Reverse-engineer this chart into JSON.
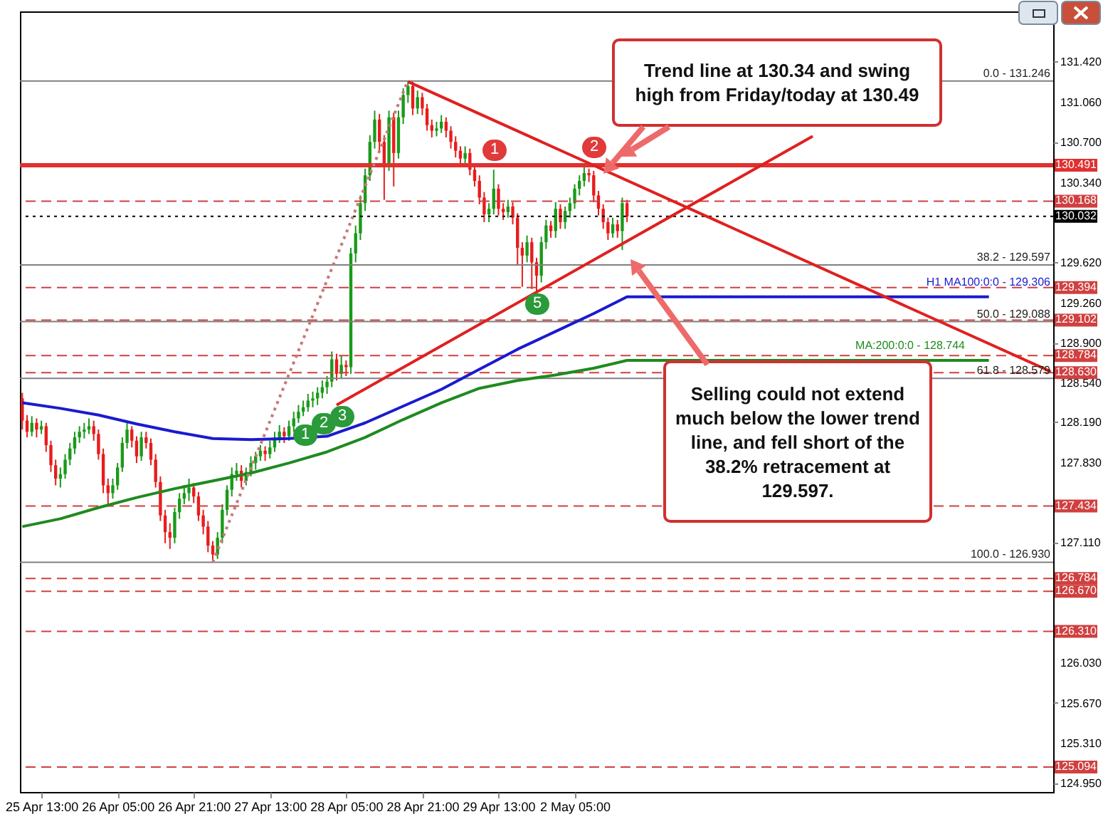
{
  "chart_data": {
    "type": "candlestick",
    "categories": [
      null,
      null,
      null,
      null,
      "25 Apr 13:00",
      null,
      null,
      null,
      null,
      null,
      null,
      null,
      null,
      null,
      null,
      null,
      null,
      null,
      null,
      null,
      "26 Apr 05:00",
      null,
      null,
      null,
      null,
      null,
      null,
      null,
      null,
      null,
      null,
      null,
      null,
      null,
      null,
      null,
      "26 Apr 21:00",
      null,
      null,
      null,
      null,
      null,
      null,
      null,
      null,
      null,
      null,
      null,
      null,
      null,
      null,
      null,
      "27 Apr 13:00",
      null,
      null,
      null,
      null,
      null,
      null,
      null,
      null,
      null,
      null,
      null,
      null,
      null,
      null,
      null,
      "28 Apr 05:00",
      null,
      null,
      null,
      null,
      null,
      null,
      null,
      null,
      null,
      null,
      null,
      null,
      null,
      null,
      null,
      "28 Apr 21:00",
      null,
      null,
      null,
      null,
      null,
      null,
      null,
      null,
      null,
      null,
      null,
      null,
      null,
      null,
      null,
      "29 Apr 13:00",
      null,
      null,
      null,
      null,
      null,
      null,
      null,
      null,
      null,
      null,
      null,
      null,
      null,
      null,
      null,
      "2 May 05:00",
      null,
      null,
      null,
      null,
      null,
      null,
      null,
      null,
      null,
      null,
      null,
      null,
      null,
      null,
      null,
      null,
      null,
      null,
      null,
      null,
      null,
      null,
      null,
      null,
      null,
      null,
      null,
      null,
      null,
      null,
      null,
      null,
      null,
      null,
      null,
      null,
      null,
      null,
      null,
      null,
      null,
      null,
      null,
      null,
      null,
      null,
      null,
      null,
      null,
      null,
      null,
      null,
      null,
      null,
      null,
      null,
      null,
      null,
      null,
      null,
      null,
      null,
      null,
      null,
      null,
      null,
      null,
      null,
      null,
      null,
      null,
      null,
      null,
      null,
      null,
      null,
      null,
      null,
      null,
      null,
      null,
      null,
      null,
      null,
      null,
      null,
      null,
      null,
      null,
      null,
      null,
      null,
      null,
      null,
      null,
      null,
      null,
      null,
      null,
      null
    ],
    "ohlc": [
      [
        128.4,
        128.45,
        128.12,
        128.2
      ],
      [
        128.2,
        128.25,
        128.05,
        128.1
      ],
      [
        128.1,
        128.24,
        128.06,
        128.18
      ],
      [
        128.18,
        128.22,
        128.05,
        128.12
      ],
      [
        128.12,
        128.2,
        128.08,
        128.15
      ],
      [
        128.15,
        128.18,
        127.92,
        127.98
      ],
      [
        127.98,
        128.02,
        127.74,
        127.8
      ],
      [
        127.8,
        127.85,
        127.62,
        127.68
      ],
      [
        127.68,
        127.78,
        127.6,
        127.72
      ],
      [
        127.72,
        127.9,
        127.68,
        127.85
      ],
      [
        127.85,
        128.0,
        127.8,
        127.95
      ],
      [
        127.95,
        128.1,
        127.9,
        128.05
      ],
      [
        128.05,
        128.15,
        128.0,
        128.1
      ],
      [
        128.1,
        128.18,
        128.04,
        128.12
      ],
      [
        128.12,
        128.22,
        128.08,
        128.15
      ],
      [
        128.15,
        128.2,
        128.02,
        128.08
      ],
      [
        128.08,
        128.12,
        127.85,
        127.9
      ],
      [
        127.9,
        127.95,
        127.55,
        127.62
      ],
      [
        127.62,
        127.68,
        127.45,
        127.55
      ],
      [
        127.55,
        127.68,
        127.5,
        127.62
      ],
      [
        127.62,
        127.82,
        127.58,
        127.78
      ],
      [
        127.78,
        128.05,
        127.74,
        128.0
      ],
      [
        128.0,
        128.18,
        127.95,
        128.12
      ],
      [
        128.12,
        128.15,
        127.96,
        128.02
      ],
      [
        128.02,
        128.06,
        127.82,
        127.88
      ],
      [
        127.88,
        128.1,
        127.84,
        128.05
      ],
      [
        128.05,
        128.1,
        127.95,
        128.0
      ],
      [
        128.0,
        128.04,
        127.8,
        127.85
      ],
      [
        127.85,
        127.9,
        127.6,
        127.65
      ],
      [
        127.65,
        127.7,
        127.3,
        127.35
      ],
      [
        127.35,
        127.4,
        127.1,
        127.2
      ],
      [
        127.2,
        127.28,
        127.05,
        127.15
      ],
      [
        127.15,
        127.42,
        127.1,
        127.38
      ],
      [
        127.38,
        127.55,
        127.32,
        127.5
      ],
      [
        127.5,
        127.62,
        127.45,
        127.55
      ],
      [
        127.55,
        127.68,
        127.48,
        127.6
      ],
      [
        127.6,
        127.64,
        127.46,
        127.52
      ],
      [
        127.52,
        127.56,
        127.3,
        127.35
      ],
      [
        127.35,
        127.4,
        127.18,
        127.25
      ],
      [
        127.25,
        127.3,
        127.02,
        127.08
      ],
      [
        127.08,
        127.12,
        126.93,
        127.0
      ],
      [
        127.0,
        127.2,
        126.96,
        127.15
      ],
      [
        127.15,
        127.45,
        127.1,
        127.4
      ],
      [
        127.4,
        127.62,
        127.35,
        127.58
      ],
      [
        127.58,
        127.78,
        127.52,
        127.72
      ],
      [
        127.72,
        127.82,
        127.66,
        127.75
      ],
      [
        127.75,
        127.8,
        127.6,
        127.66
      ],
      [
        127.66,
        127.78,
        127.62,
        127.74
      ],
      [
        127.74,
        127.88,
        127.7,
        127.82
      ],
      [
        127.82,
        127.92,
        127.76,
        127.88
      ],
      [
        127.88,
        127.98,
        127.84,
        127.93
      ],
      [
        127.93,
        127.97,
        127.84,
        127.9
      ],
      [
        127.9,
        128.02,
        127.86,
        127.96
      ],
      [
        127.96,
        128.1,
        127.92,
        128.05
      ],
      [
        128.05,
        128.16,
        128.0,
        128.1
      ],
      [
        128.1,
        128.14,
        128.0,
        128.06
      ],
      [
        128.06,
        128.2,
        128.02,
        128.15
      ],
      [
        128.15,
        128.28,
        128.1,
        128.22
      ],
      [
        128.22,
        128.34,
        128.18,
        128.28
      ],
      [
        128.28,
        128.38,
        128.24,
        128.32
      ],
      [
        128.32,
        128.44,
        128.28,
        128.38
      ],
      [
        128.38,
        128.46,
        128.32,
        128.4
      ],
      [
        128.4,
        128.5,
        128.34,
        128.45
      ],
      [
        128.45,
        128.56,
        128.4,
        128.5
      ],
      [
        128.5,
        128.6,
        128.44,
        128.55
      ],
      [
        128.55,
        128.82,
        128.5,
        128.75
      ],
      [
        128.75,
        128.8,
        128.56,
        128.62
      ],
      [
        128.62,
        128.78,
        128.58,
        128.7
      ],
      [
        128.7,
        128.74,
        128.6,
        128.68
      ],
      [
        128.68,
        129.75,
        128.62,
        129.7
      ],
      [
        129.7,
        129.95,
        129.62,
        129.88
      ],
      [
        129.88,
        130.22,
        129.82,
        130.15
      ],
      [
        130.15,
        130.46,
        130.08,
        130.4
      ],
      [
        130.4,
        130.76,
        130.35,
        130.7
      ],
      [
        130.7,
        130.98,
        130.64,
        130.9
      ],
      [
        130.9,
        130.95,
        130.62,
        130.7
      ],
      [
        130.7,
        130.76,
        130.18,
        130.5
      ],
      [
        130.5,
        130.98,
        130.44,
        130.92
      ],
      [
        130.92,
        130.96,
        130.3,
        130.6
      ],
      [
        130.6,
        130.98,
        130.55,
        130.92
      ],
      [
        130.92,
        131.18,
        130.86,
        131.12
      ],
      [
        131.12,
        131.25,
        131.05,
        131.2
      ],
      [
        131.2,
        131.24,
        130.94,
        131.0
      ],
      [
        131.0,
        131.16,
        130.95,
        131.1
      ],
      [
        131.1,
        131.14,
        130.94,
        131.0
      ],
      [
        131.0,
        131.04,
        130.8,
        130.85
      ],
      [
        130.85,
        130.9,
        130.74,
        130.8
      ],
      [
        130.8,
        130.88,
        130.75,
        130.82
      ],
      [
        130.82,
        130.94,
        130.78,
        130.88
      ],
      [
        130.88,
        130.92,
        130.74,
        130.8
      ],
      [
        130.8,
        130.84,
        130.64,
        130.7
      ],
      [
        130.7,
        130.75,
        130.56,
        130.62
      ],
      [
        130.62,
        130.66,
        130.48,
        130.55
      ],
      [
        130.55,
        130.66,
        130.5,
        130.6
      ],
      [
        130.6,
        130.64,
        130.4,
        130.45
      ],
      [
        130.45,
        130.5,
        130.3,
        130.35
      ],
      [
        130.35,
        130.4,
        130.14,
        130.2
      ],
      [
        130.2,
        130.25,
        129.98,
        130.05
      ],
      [
        130.05,
        130.15,
        129.98,
        130.1
      ],
      [
        130.1,
        130.45,
        130.05,
        130.28
      ],
      [
        130.28,
        130.32,
        130.04,
        130.1
      ],
      [
        130.1,
        130.15,
        130.0,
        130.07
      ],
      [
        130.07,
        130.18,
        130.02,
        130.12
      ],
      [
        130.12,
        130.16,
        129.96,
        130.02
      ],
      [
        130.02,
        130.06,
        129.6,
        129.75
      ],
      [
        129.75,
        129.8,
        129.4,
        129.68
      ],
      [
        129.68,
        129.86,
        129.62,
        129.8
      ],
      [
        129.8,
        129.84,
        129.38,
        129.62
      ],
      [
        129.62,
        129.66,
        129.33,
        129.5
      ],
      [
        129.5,
        129.85,
        129.44,
        129.8
      ],
      [
        129.8,
        130.0,
        129.74,
        129.95
      ],
      [
        129.95,
        129.99,
        129.84,
        129.9
      ],
      [
        129.9,
        130.16,
        129.84,
        130.1
      ],
      [
        130.1,
        130.14,
        129.92,
        129.98
      ],
      [
        129.98,
        130.12,
        129.92,
        130.08
      ],
      [
        130.08,
        130.2,
        130.02,
        130.15
      ],
      [
        130.15,
        130.32,
        130.1,
        130.28
      ],
      [
        130.28,
        130.4,
        130.22,
        130.35
      ],
      [
        130.35,
        130.49,
        130.3,
        130.42
      ],
      [
        130.42,
        130.46,
        130.34,
        130.4
      ],
      [
        130.4,
        130.44,
        130.16,
        130.22
      ],
      [
        130.22,
        130.26,
        130.04,
        130.1
      ],
      [
        130.1,
        130.14,
        129.92,
        129.98
      ],
      [
        129.98,
        130.02,
        129.82,
        129.88
      ],
      [
        129.88,
        130.02,
        129.84,
        129.96
      ],
      [
        129.96,
        130.0,
        129.84,
        129.9
      ],
      [
        129.9,
        130.2,
        129.73,
        130.15
      ],
      [
        130.15,
        130.18,
        129.98,
        130.03
      ],
      null,
      null,
      null,
      null,
      null,
      null,
      null,
      null,
      null,
      null,
      null,
      null,
      null,
      null,
      null,
      null,
      null,
      null,
      null,
      null,
      null,
      null,
      null,
      null,
      null,
      null,
      null,
      null,
      null,
      null,
      null,
      null,
      null,
      null,
      null,
      null,
      null,
      null,
      null,
      null,
      null,
      null,
      null,
      null,
      null,
      null,
      null,
      null,
      null,
      null,
      null,
      null,
      null,
      null,
      null,
      null,
      null,
      null,
      null,
      null,
      null,
      null,
      null,
      null,
      null,
      null,
      null,
      null,
      null,
      null,
      null,
      null,
      null,
      null,
      null,
      null,
      null,
      null,
      null,
      null,
      null,
      null,
      null,
      null,
      null,
      null,
      null,
      null,
      null
    ],
    "colors": [
      "#e81c1c",
      "#e81c1c",
      "#1a9a1a",
      "#e81c1c",
      "#1a9a1a",
      "#e81c1c",
      "#e81c1c",
      "#e81c1c",
      "#1a9a1a",
      "#1a9a1a",
      "#1a9a1a",
      "#1a9a1a",
      "#1a9a1a",
      "#1a9a1a",
      "#1a9a1a",
      "#e81c1c",
      "#e81c1c",
      "#e81c1c",
      "#e81c1c",
      "#1a9a1a",
      "#1a9a1a",
      "#1a9a1a",
      "#1a9a1a",
      "#e81c1c",
      "#e81c1c",
      "#1a9a1a",
      "#e81c1c",
      "#e81c1c",
      "#e81c1c",
      "#e81c1c",
      "#e81c1c",
      "#e81c1c",
      "#1a9a1a",
      "#1a9a1a",
      "#1a9a1a",
      "#1a9a1a",
      "#e81c1c",
      "#e81c1c",
      "#e81c1c",
      "#e81c1c",
      "#e81c1c",
      "#1a9a1a",
      "#1a9a1a",
      "#1a9a1a",
      "#1a9a1a",
      "#1a9a1a",
      "#e81c1c",
      "#1a9a1a",
      "#1a9a1a",
      "#1a9a1a",
      "#1a9a1a",
      "#e81c1c",
      "#1a9a1a",
      "#1a9a1a",
      "#1a9a1a",
      "#e81c1c",
      "#1a9a1a",
      "#1a9a1a",
      "#1a9a1a",
      "#1a9a1a",
      "#1a9a1a",
      "#1a9a1a",
      "#1a9a1a",
      "#1a9a1a",
      "#1a9a1a",
      "#1a9a1a",
      "#e81c1c",
      "#1a9a1a",
      "#e81c1c",
      "#1a9a1a",
      "#1a9a1a",
      "#1a9a1a",
      "#1a9a1a",
      "#1a9a1a",
      "#1a9a1a",
      "#e81c1c",
      "#e81c1c",
      "#1a9a1a",
      "#e81c1c",
      "#1a9a1a",
      "#1a9a1a",
      "#1a9a1a",
      "#e81c1c",
      "#1a9a1a",
      "#e81c1c",
      "#e81c1c",
      "#e81c1c",
      "#1a9a1a",
      "#1a9a1a",
      "#e81c1c",
      "#e81c1c",
      "#e81c1c",
      "#e81c1c",
      "#1a9a1a",
      "#e81c1c",
      "#e81c1c",
      "#e81c1c",
      "#e81c1c",
      "#1a9a1a",
      "#1a9a1a",
      "#e81c1c",
      "#e81c1c",
      "#1a9a1a",
      "#e81c1c",
      "#e81c1c",
      "#e81c1c",
      "#1a9a1a",
      "#e81c1c",
      "#e81c1c",
      "#1a9a1a",
      "#1a9a1a",
      "#e81c1c",
      "#1a9a1a",
      "#e81c1c",
      "#1a9a1a",
      "#1a9a1a",
      "#1a9a1a",
      "#1a9a1a",
      "#1a9a1a",
      "#e81c1c",
      "#e81c1c",
      "#e81c1c",
      "#e81c1c",
      "#e81c1c",
      "#1a9a1a",
      "#e81c1c",
      "#1a9a1a",
      "#e81c1c",
      null,
      null,
      null,
      null,
      null,
      null,
      null,
      null,
      null,
      null,
      null,
      null,
      null,
      null,
      null,
      null,
      null,
      null,
      null,
      null,
      null,
      null,
      null,
      null,
      null,
      null,
      null,
      null,
      null,
      null,
      null,
      null,
      null,
      null,
      null,
      null,
      null,
      null,
      null,
      null,
      null,
      null,
      null,
      null,
      null,
      null,
      null,
      null,
      null,
      null,
      null,
      null,
      null,
      null,
      null,
      null,
      null,
      null,
      null,
      null,
      null,
      null,
      null,
      null,
      null,
      null,
      null,
      null,
      null,
      null,
      null,
      null,
      null,
      null,
      null,
      null,
      null,
      null,
      null,
      null,
      null,
      null,
      null,
      null,
      null,
      null,
      null,
      null,
      null
    ],
    "series": [
      {
        "type": "line",
        "name": "H1 MA100:0:0 - 129.306",
        "color": "#1a1ad0",
        "values": [
          128.36,
          null,
          null,
          null,
          null,
          null,
          null,
          null,
          128.31,
          null,
          null,
          null,
          null,
          null,
          null,
          null,
          128.25,
          null,
          null,
          null,
          null,
          null,
          null,
          null,
          128.17,
          null,
          null,
          null,
          null,
          null,
          null,
          null,
          128.1,
          null,
          null,
          null,
          null,
          null,
          null,
          null,
          128.04,
          null,
          null,
          null,
          null,
          null,
          null,
          null,
          128.03,
          null,
          null,
          null,
          null,
          null,
          null,
          null,
          128.04,
          null,
          null,
          null,
          null,
          null,
          null,
          null,
          128.06,
          null,
          null,
          null,
          null,
          null,
          null,
          null,
          128.18,
          null,
          null,
          null,
          null,
          null,
          null,
          null,
          128.33,
          null,
          null,
          null,
          null,
          null,
          null,
          null,
          128.48,
          null,
          null,
          null,
          null,
          null,
          null,
          null,
          128.66,
          null,
          null,
          null,
          null,
          null,
          null,
          null,
          128.84,
          null,
          null,
          null,
          null,
          null,
          null,
          null,
          129.0,
          null,
          null,
          null,
          null,
          null,
          null,
          null,
          129.16,
          null,
          null,
          null,
          null,
          null,
          null,
          129.31,
          null,
          null,
          null,
          null,
          null,
          null,
          null,
          null,
          null,
          null,
          null,
          null,
          null,
          null,
          null,
          null,
          null,
          null,
          null,
          null,
          null,
          null,
          null,
          null,
          null,
          null,
          null,
          null,
          null,
          null,
          null,
          null,
          null,
          null,
          null,
          null,
          null,
          null,
          null,
          null,
          null,
          null,
          null,
          null,
          null,
          null,
          null,
          null,
          null,
          null,
          null,
          null,
          null,
          null,
          null,
          null,
          null,
          null,
          null,
          null,
          null,
          null,
          null,
          null,
          null,
          null,
          null,
          null,
          null,
          null,
          null,
          null,
          null,
          null,
          null,
          129.31,
          null,
          null,
          null,
          null,
          null,
          null,
          null,
          null,
          null,
          null,
          null,
          null,
          null
        ]
      },
      {
        "type": "line",
        "name": "MA:200:0:0 - 128.744",
        "color": "#1f8a1f",
        "values": [
          127.25,
          null,
          null,
          null,
          null,
          null,
          null,
          null,
          127.32,
          null,
          null,
          null,
          null,
          null,
          null,
          null,
          127.42,
          null,
          null,
          null,
          null,
          null,
          null,
          null,
          127.51,
          null,
          null,
          null,
          null,
          null,
          null,
          null,
          127.59,
          null,
          null,
          null,
          null,
          null,
          null,
          null,
          127.66,
          null,
          null,
          null,
          null,
          null,
          null,
          null,
          127.73,
          null,
          null,
          null,
          null,
          null,
          null,
          null,
          127.82,
          null,
          null,
          null,
          null,
          null,
          null,
          null,
          127.92,
          null,
          null,
          null,
          null,
          null,
          null,
          null,
          128.05,
          null,
          null,
          null,
          null,
          null,
          null,
          null,
          128.21,
          null,
          null,
          null,
          null,
          null,
          null,
          null,
          128.36,
          null,
          null,
          null,
          null,
          null,
          null,
          null,
          128.49,
          null,
          null,
          null,
          null,
          null,
          null,
          null,
          128.56,
          null,
          null,
          null,
          null,
          null,
          null,
          null,
          128.61,
          null,
          null,
          null,
          null,
          null,
          null,
          null,
          128.67,
          null,
          null,
          null,
          null,
          null,
          null,
          128.74,
          null,
          null,
          null,
          null,
          null,
          null,
          null,
          null,
          null,
          null,
          null,
          null,
          null,
          null,
          null,
          null,
          null,
          null,
          null,
          null,
          null,
          null,
          null,
          null,
          null,
          null,
          null,
          null,
          null,
          null,
          null,
          null,
          null,
          null,
          null,
          null,
          null,
          null,
          null,
          null,
          null,
          null,
          null,
          null,
          null,
          null,
          null,
          null,
          null,
          null,
          null,
          null,
          null,
          null,
          null,
          null,
          null,
          null,
          null,
          null,
          null,
          null,
          null,
          null,
          null,
          null,
          null,
          null,
          null,
          null,
          null,
          null,
          null,
          null,
          null,
          128.74,
          null,
          null,
          null,
          null,
          null,
          null,
          null,
          null,
          null,
          null,
          null,
          null,
          null
        ]
      },
      {
        "type": "line",
        "color": "#e02020",
        "values": [
          null,
          null,
          null,
          null,
          null,
          null,
          null,
          null,
          null,
          null,
          null,
          null,
          null,
          null,
          null,
          null,
          null,
          null,
          null,
          null,
          null,
          null,
          null,
          null,
          null,
          null,
          null,
          null,
          null,
          null,
          null,
          null,
          null,
          null,
          null,
          null,
          null,
          null,
          null,
          null,
          null,
          null,
          null,
          null,
          null,
          null,
          null,
          null,
          null,
          null,
          null,
          null,
          null,
          null,
          null,
          null,
          null,
          null,
          null,
          null,
          null,
          null,
          null,
          null,
          null,
          null,
          null,
          null,
          null,
          null,
          null,
          null,
          null,
          null,
          null,
          null,
          null,
          null,
          null,
          null,
          null,
          131.24,
          null,
          null,
          null,
          null,
          null,
          null,
          null,
          null,
          null,
          null,
          null,
          null,
          null,
          null,
          null,
          null,
          null,
          null,
          null,
          null,
          null,
          null,
          null,
          null,
          null,
          null,
          null,
          null,
          null,
          null,
          null,
          null,
          null,
          null,
          null,
          null,
          null,
          null,
          null,
          null,
          null,
          null,
          null,
          null,
          null,
          null,
          null,
          null,
          null,
          null,
          null,
          null,
          null,
          null,
          null,
          null,
          null,
          null,
          null,
          null,
          null,
          null,
          null,
          null,
          null,
          null,
          null,
          null,
          null,
          null,
          null,
          null,
          null,
          null,
          null,
          null,
          null,
          null,
          null,
          null,
          null,
          null,
          null,
          null,
          null,
          null,
          null,
          null,
          null,
          null,
          null,
          null,
          null,
          null,
          null,
          null,
          null,
          null,
          null,
          null,
          null,
          null,
          null,
          null,
          null,
          null,
          null,
          null,
          null,
          null,
          null,
          null,
          null,
          null,
          null,
          null,
          null,
          null,
          null,
          null,
          null,
          null,
          null,
          null,
          null,
          null,
          null,
          null,
          null,
          null,
          null,
          null,
          null,
          null,
          128.64
        ]
      },
      {
        "type": "line",
        "color": "#e02020",
        "values": [
          null,
          null,
          null,
          null,
          null,
          null,
          null,
          null,
          null,
          null,
          null,
          null,
          null,
          null,
          null,
          null,
          null,
          null,
          null,
          null,
          null,
          null,
          null,
          null,
          null,
          null,
          null,
          null,
          null,
          null,
          null,
          null,
          null,
          null,
          null,
          null,
          null,
          null,
          null,
          null,
          null,
          null,
          null,
          null,
          null,
          null,
          null,
          null,
          null,
          null,
          null,
          null,
          null,
          null,
          null,
          null,
          null,
          null,
          null,
          null,
          null,
          null,
          null,
          null,
          null,
          null,
          128.34,
          null,
          null,
          null,
          null,
          null,
          null,
          null,
          null,
          null,
          null,
          null,
          null,
          null,
          null,
          null,
          null,
          null,
          null,
          null,
          null,
          null,
          null,
          null,
          null,
          null,
          null,
          null,
          null,
          null,
          null,
          null,
          null,
          null,
          null,
          null,
          null,
          null,
          null,
          null,
          null,
          null,
          null,
          null,
          null,
          null,
          null,
          null,
          null,
          null,
          null,
          null,
          null,
          null,
          null,
          null,
          null,
          null,
          null,
          null,
          null,
          null,
          null,
          null,
          null,
          null,
          null,
          null,
          null,
          null,
          null,
          null,
          null,
          null,
          null,
          null,
          null,
          null,
          null,
          null,
          null,
          null,
          null,
          null,
          null,
          null,
          null,
          null,
          null,
          null,
          null,
          null,
          null,
          null,
          null,
          null,
          null,
          null,
          null,
          null,
          130.75,
          null,
          null,
          null,
          null,
          null,
          null,
          null,
          null,
          null,
          null,
          null,
          null,
          null,
          null,
          null,
          null,
          null,
          null,
          null,
          null,
          null,
          null,
          null,
          null,
          null,
          null,
          null,
          null,
          null,
          null,
          null,
          null,
          null,
          null,
          null,
          null,
          null,
          null,
          null,
          null,
          null,
          null,
          null,
          null,
          null,
          null,
          null,
          null,
          null,
          null
        ]
      },
      {
        "type": "line",
        "color": "#c87878",
        "line_style": "dotted",
        "values": [
          null,
          null,
          null,
          null,
          null,
          null,
          null,
          null,
          null,
          null,
          null,
          null,
          null,
          null,
          null,
          null,
          null,
          null,
          null,
          null,
          null,
          null,
          null,
          null,
          null,
          null,
          null,
          null,
          null,
          null,
          null,
          null,
          null,
          null,
          null,
          null,
          null,
          null,
          null,
          null,
          126.93,
          null,
          null,
          null,
          null,
          null,
          null,
          null,
          null,
          null,
          null,
          null,
          null,
          null,
          null,
          null,
          null,
          null,
          null,
          null,
          null,
          null,
          null,
          null,
          null,
          null,
          null,
          null,
          null,
          null,
          null,
          null,
          null,
          null,
          null,
          null,
          null,
          null,
          null,
          null,
          null,
          131.25,
          null,
          null,
          null,
          null,
          null,
          null,
          null,
          null,
          null,
          null,
          null,
          null,
          null,
          null,
          null,
          null,
          null,
          null,
          null,
          null,
          null,
          null,
          null,
          null,
          null,
          null,
          null,
          null,
          null,
          null,
          null,
          null,
          null,
          null,
          null,
          null,
          null,
          null,
          null,
          null,
          null,
          null,
          null,
          null,
          null,
          null,
          null,
          null,
          null,
          null,
          null,
          null,
          null,
          null,
          null,
          null,
          null,
          null,
          null,
          null,
          null,
          null,
          null,
          null,
          null,
          null,
          null,
          null,
          null,
          null,
          null,
          null,
          null,
          null,
          null,
          null,
          null,
          null,
          null,
          null,
          null,
          null,
          null,
          null,
          null,
          null,
          null,
          null,
          null,
          null,
          null,
          null,
          null,
          null,
          null,
          null,
          null,
          null,
          null,
          null,
          null,
          null,
          null,
          null,
          null,
          null,
          null,
          null,
          null,
          null,
          null,
          null,
          null,
          null,
          null,
          null,
          null,
          null,
          null,
          null,
          null,
          null,
          null,
          null,
          null,
          null,
          null,
          null,
          null,
          null,
          null,
          null,
          null,
          null,
          null
        ]
      }
    ],
    "ylim": [
      124.87,
      131.87
    ],
    "yticks": [
      {
        "value": 131.42,
        "label": "131.420"
      },
      {
        "value": 131.06,
        "label": "131.060"
      },
      {
        "value": 130.7,
        "label": "130.700"
      },
      {
        "value": 130.34,
        "label": "130.340"
      },
      {
        "value": 129.62,
        "label": "129.620"
      },
      {
        "value": 129.26,
        "label": "129.260"
      },
      {
        "value": 128.9,
        "label": "128.900"
      },
      {
        "value": 128.54,
        "label": "128.540"
      },
      {
        "value": 128.19,
        "label": "128.190"
      },
      {
        "value": 127.83,
        "label": "127.830"
      },
      {
        "value": 127.11,
        "label": "127.110"
      },
      {
        "value": 126.03,
        "label": "126.030"
      },
      {
        "value": 125.67,
        "label": "125.670"
      },
      {
        "value": 125.31,
        "label": "125.310"
      },
      {
        "value": 124.95,
        "label": "124.950"
      }
    ],
    "ref_lines": [
      {
        "axis": "y",
        "value": 131.246,
        "color": "#808080"
      },
      {
        "axis": "y",
        "value": 129.597,
        "color": "#808080"
      },
      {
        "axis": "y",
        "value": 129.088,
        "color": "#808080"
      },
      {
        "axis": "y",
        "value": 128.579,
        "color": "#808080"
      },
      {
        "axis": "y",
        "value": 126.93,
        "color": "#808080"
      },
      {
        "axis": "y",
        "value": 130.491,
        "label": "130.491",
        "color": "#e03030",
        "line_style": "solid"
      },
      {
        "axis": "y",
        "value": 130.168,
        "label": "130.168",
        "color": "#d04040",
        "line_style": "dashed"
      },
      {
        "axis": "y",
        "value": 130.032,
        "label": "130.032",
        "color": "#000000",
        "line_style": "dotted"
      },
      {
        "axis": "y",
        "value": 129.394,
        "label": "129.394",
        "color": "#d04040",
        "line_style": "dashed"
      },
      {
        "axis": "y",
        "value": 129.102,
        "label": "129.102",
        "color": "#d04040",
        "line_style": "dashed"
      },
      {
        "axis": "y",
        "value": 128.784,
        "label": "128.784",
        "color": "#d04040",
        "line_style": "dashed"
      },
      {
        "axis": "y",
        "value": 128.63,
        "label": "128.630",
        "color": "#d04040",
        "line_style": "dashed"
      },
      {
        "axis": "y",
        "value": 127.434,
        "label": "127.434",
        "color": "#d04040",
        "line_style": "dashed"
      },
      {
        "axis": "y",
        "value": 126.784,
        "label": "126.784",
        "color": "#d04040",
        "line_style": "dashed"
      },
      {
        "axis": "y",
        "value": 126.67,
        "label": "126.670",
        "color": "#d04040",
        "line_style": "dashed"
      },
      {
        "axis": "y",
        "value": 126.31,
        "label": "126.310",
        "color": "#d04040",
        "line_style": "dashed"
      },
      {
        "axis": "y",
        "value": 125.094,
        "label": "125.094",
        "color": "#d04040",
        "line_style": "dashed"
      }
    ],
    "annotations": [
      "Trend line at 130.34 and swing high from Friday/today at 130.49",
      "Selling could not extend much below the lower trend line, and fell short of the 38.2% retracement at 129.597.",
      {
        "text": "1",
        "y": 130.63
      },
      {
        "text": "2",
        "y": 130.66
      },
      {
        "text": "1",
        "y": 128.08
      },
      {
        "text": "2",
        "y": 128.18
      },
      {
        "text": "3",
        "y": 128.24
      },
      {
        "text": "5",
        "y": 129.25
      },
      {
        "text": "0.0 - 131.246",
        "y": 131.246
      },
      {
        "text": "38.2 - 129.597",
        "y": 129.597
      },
      {
        "text": "50.0 - 129.088",
        "y": 129.088
      },
      {
        "text": "61.8 - 128.579",
        "y": 128.579
      },
      {
        "text": "100.0 - 126.930",
        "y": 126.93
      }
    ],
    "grid": false
  }
}
